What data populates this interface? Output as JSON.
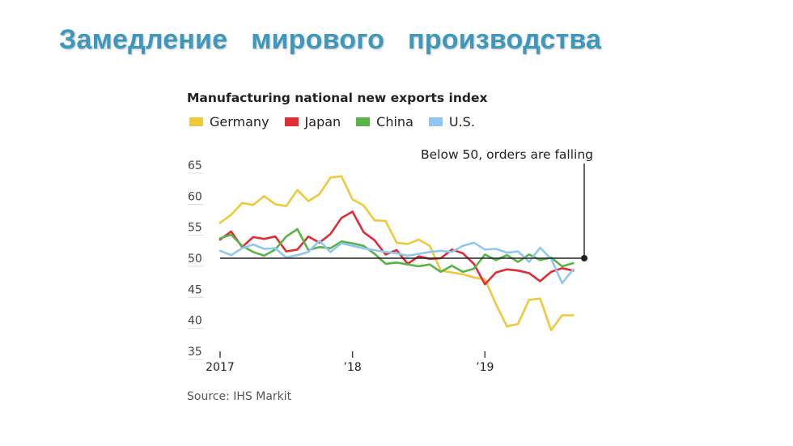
{
  "slide": {
    "title": "Замедление   мирового   производства"
  },
  "chart_data": {
    "type": "line",
    "title": "Manufacturing national new exports index",
    "annotation": "Below 50, orders are falling",
    "source": "Source: IHS Markit",
    "x_tick_labels": [
      "2017",
      "’18",
      "’19"
    ],
    "y_ticks": [
      35,
      40,
      45,
      50,
      55,
      60,
      65
    ],
    "ylim": [
      35,
      65
    ],
    "x_start": "2017-01",
    "x_end": "2019-10",
    "reference_line": 50,
    "grid": false,
    "legend_position": "top",
    "series": [
      {
        "name": "Germany",
        "color": "#eec93c",
        "values": [
          55.7,
          57.0,
          58.9,
          58.6,
          60.0,
          58.7,
          58.4,
          61.0,
          59.2,
          60.3,
          63.0,
          63.2,
          59.5,
          58.5,
          56.1,
          56.0,
          52.5,
          52.3,
          53.0,
          52.0,
          48.0,
          47.7,
          47.4,
          46.9,
          46.6,
          42.6,
          39.0,
          39.4,
          43.3,
          43.5,
          38.4,
          40.8,
          40.8
        ]
      },
      {
        "name": "Japan",
        "color": "#e32b35",
        "values": [
          53.0,
          54.3,
          51.8,
          53.4,
          53.1,
          53.5,
          51.1,
          51.4,
          53.5,
          52.5,
          53.9,
          56.5,
          57.5,
          54.2,
          52.9,
          50.6,
          51.3,
          49.1,
          50.3,
          49.9,
          50.0,
          51.4,
          50.8,
          49.1,
          45.8,
          47.7,
          48.2,
          48.0,
          47.6,
          46.3,
          47.8,
          48.4,
          48.0
        ]
      },
      {
        "name": "China",
        "color": "#5ab346",
        "values": [
          53.2,
          53.8,
          52.0,
          51.0,
          50.4,
          51.4,
          53.5,
          54.7,
          51.3,
          51.8,
          51.6,
          52.7,
          52.4,
          52.0,
          50.7,
          49.1,
          49.3,
          49.0,
          48.7,
          49.0,
          47.8,
          48.8,
          47.8,
          48.3,
          50.6,
          49.7,
          50.5,
          49.4,
          50.6,
          49.7,
          50.1,
          48.7,
          49.2
        ]
      },
      {
        "name": "U.S.",
        "color": "#8fc7ee",
        "values": [
          51.2,
          50.5,
          51.6,
          52.2,
          51.5,
          51.6,
          50.1,
          50.5,
          51.0,
          52.8,
          51.0,
          52.4,
          52.0,
          51.6,
          51.3,
          51.0,
          50.8,
          50.4,
          50.7,
          51.0,
          51.2,
          51.0,
          52.0,
          52.5,
          51.4,
          51.5,
          50.9,
          51.1,
          49.4,
          51.7,
          49.9,
          46.0,
          48.2
        ]
      }
    ]
  }
}
